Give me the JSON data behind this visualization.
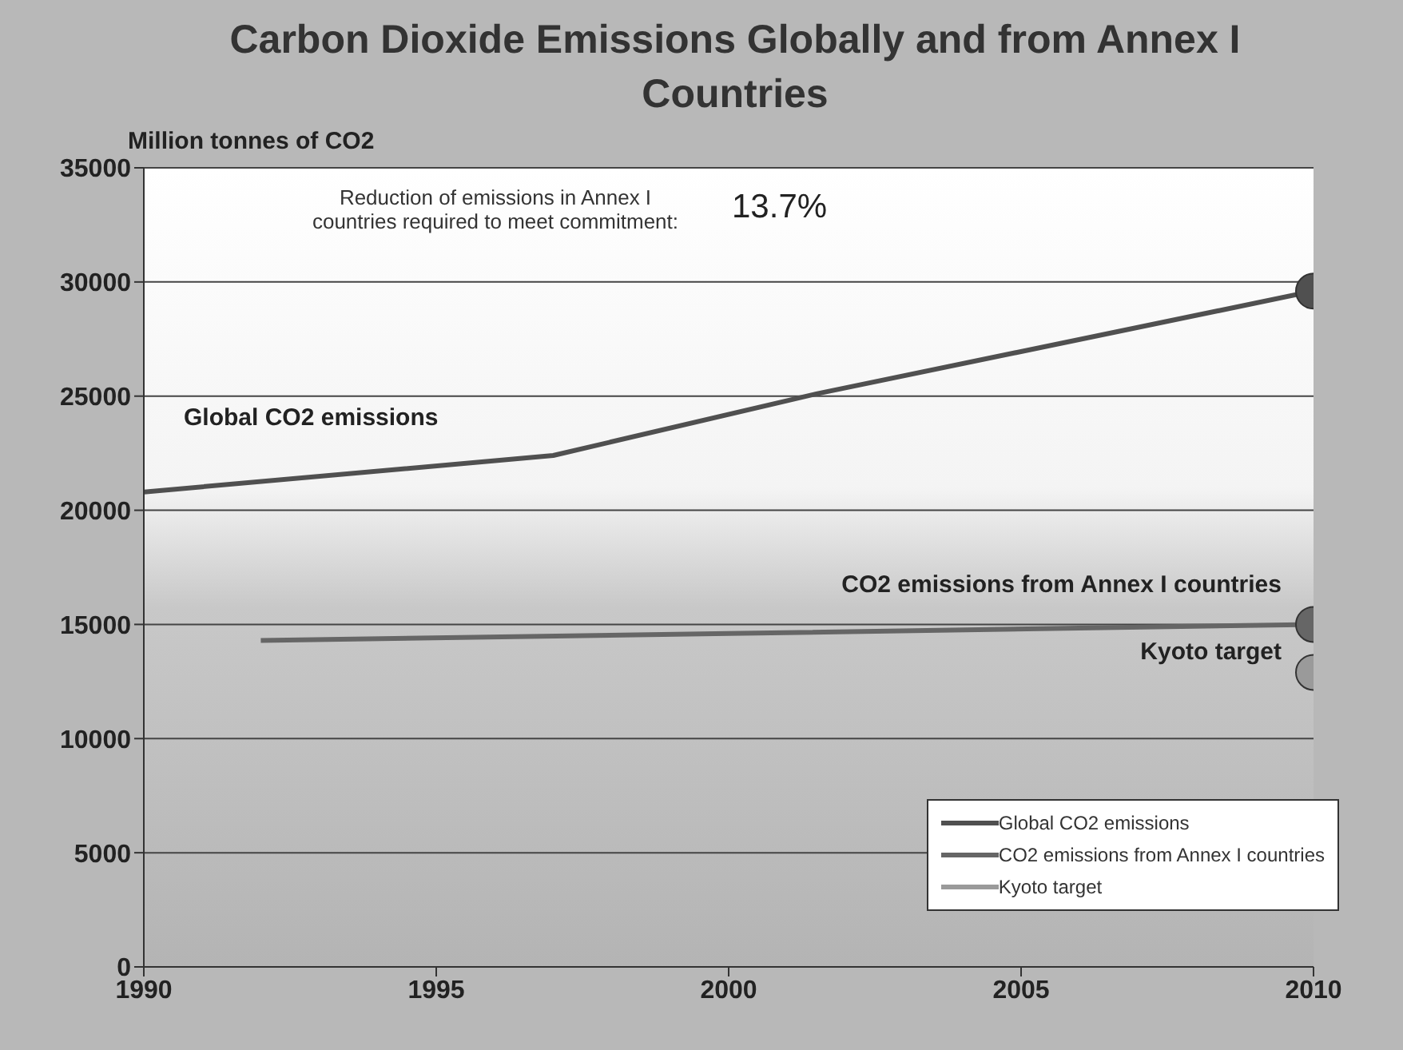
{
  "chart_data": {
    "type": "line",
    "title": "Carbon Dioxide Emissions Globally and from Annex I Countries",
    "ylabel": "Million tonnes of CO2",
    "annotations": [
      "Reduction of emissions in Annex I countries required to meet commitment:",
      "13.7%"
    ],
    "series": [
      {
        "name": "Global CO2 emissions",
        "color": "#505050",
        "x": [
          1990,
          1997,
          2001.5,
          2010
        ],
        "values": [
          20800,
          22400,
          25100,
          29600
        ]
      },
      {
        "name": "CO2 emissions from Annex I countries",
        "color": "#666666",
        "x": [
          1992,
          2000,
          2010
        ],
        "values": [
          14300,
          14600,
          15000
        ]
      },
      {
        "name": "Kyoto target",
        "type": "scatter",
        "marker": "circle",
        "color": "#9a9a9a",
        "x": [
          2010
        ],
        "values": [
          12900
        ]
      },
      {
        "type": "scatter",
        "marker": "circle",
        "colors": [
          "#505050",
          "#666666"
        ],
        "x": [
          2010,
          2010
        ],
        "values": [
          29600,
          15000
        ]
      }
    ],
    "xlim": [
      1990,
      2010
    ],
    "xticks": [
      1990,
      1995,
      2000,
      2005,
      2010
    ],
    "ylim": [
      0,
      35000
    ],
    "yticks": [
      0,
      5000,
      10000,
      15000,
      20000,
      25000,
      30000,
      35000
    ],
    "grid": "y",
    "legend": "bottom right",
    "line_style": "solid"
  }
}
